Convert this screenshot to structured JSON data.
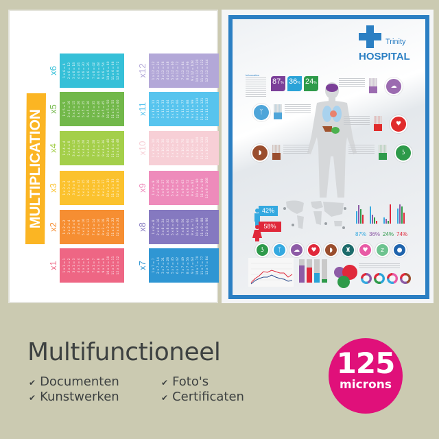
{
  "left_poster": {
    "title": "MULTIPLICATION",
    "tables": [
      {
        "label": "x1",
        "color": "#ee6684",
        "rows": [
          "1 x 1 = 1",
          "2 x 1 = 2",
          "3 x 1 = 3",
          "4 x 1 = 4",
          "5 x 1 = 5",
          "6 x 1 = 6",
          "7 x 1 = 7",
          "8 x 1 = 8",
          "9 x 1 = 9",
          "10 x 1 = 10",
          "11 x 1 = 11",
          "12 x 1 = 12"
        ]
      },
      {
        "label": "x2",
        "color": "#f68e32",
        "rows": [
          "1 x 2 = 2",
          "2 x 2 = 4",
          "3 x 2 = 6",
          "4 x 2 = 8",
          "5 x 2 = 10",
          "6 x 2 = 12",
          "7 x 2 = 14",
          "8 x 2 = 16",
          "9 x 2 = 18",
          "10 x 2 = 20",
          "11 x 2 = 22",
          "12 x 2 = 24"
        ]
      },
      {
        "label": "x3",
        "color": "#fbc22e",
        "rows": [
          "1 x 3 = 3",
          "2 x 3 = 6",
          "3 x 3 = 9",
          "4 x 3 = 12",
          "5 x 3 = 15",
          "6 x 3 = 18",
          "7 x 3 = 21",
          "8 x 3 = 24",
          "9 x 3 = 27",
          "10 x 3 = 30",
          "11 x 3 = 33",
          "12 x 3 = 36"
        ]
      },
      {
        "label": "x4",
        "color": "#a4cf4a",
        "rows": [
          "1 x 4 = 4",
          "2 x 4 = 8",
          "3 x 4 = 12",
          "4 x 4 = 16",
          "5 x 4 = 20",
          "6 x 4 = 24",
          "7 x 4 = 28",
          "8 x 4 = 32",
          "9 x 4 = 36",
          "10 x 4 = 40",
          "11 x 4 = 44",
          "12 x 4 = 48"
        ]
      },
      {
        "label": "x5",
        "color": "#72b84a",
        "rows": [
          "1 x 5 = 5",
          "2 x 5 = 10",
          "3 x 5 = 15",
          "4 x 5 = 20",
          "5 x 5 = 25",
          "6 x 5 = 30",
          "7 x 5 = 35",
          "8 x 5 = 40",
          "9 x 5 = 45",
          "10 x 5 = 50",
          "11 x 5 = 55",
          "12 x 5 = 60"
        ]
      },
      {
        "label": "x6",
        "color": "#36c0d8",
        "rows": [
          "1 x 6 = 6",
          "2 x 6 = 12",
          "3 x 6 = 18",
          "4 x 6 = 24",
          "5 x 6 = 30",
          "6 x 6 = 36",
          "7 x 6 = 42",
          "8 x 6 = 48",
          "9 x 6 = 54",
          "10 x 6 = 60",
          "11 x 6 = 66",
          "12 x 6 = 72"
        ]
      },
      {
        "label": "x7",
        "color": "#2f96d3",
        "rows": [
          "1 x 7 = 7",
          "2 x 7 = 14",
          "3 x 7 = 21",
          "4 x 7 = 28",
          "5 x 7 = 35",
          "6 x 7 = 42",
          "7 x 7 = 49",
          "8 x 7 = 56",
          "9 x 7 = 63",
          "10 x 7 = 70",
          "11 x 7 = 77",
          "12 x 7 = 84"
        ]
      },
      {
        "label": "x8",
        "color": "#8579c0",
        "rows": [
          "1 x 8 = 8",
          "2 x 8 = 16",
          "3 x 8 = 24",
          "4 x 8 = 32",
          "5 x 8 = 40",
          "6 x 8 = 48",
          "7 x 8 = 56",
          "8 x 8 = 64",
          "9 x 8 = 72",
          "10 x 8 = 80",
          "11 x 8 = 88",
          "12 x 8 = 96"
        ]
      },
      {
        "label": "x9",
        "color": "#ee8bbb",
        "rows": [
          "1 x 9 = 9",
          "2 x 9 = 18",
          "3 x 9 = 27",
          "4 x 9 = 36",
          "5 x 9 = 45",
          "6 x 9 = 54",
          "7 x 9 = 63",
          "8 x 9 = 72",
          "9 x 9 = 81",
          "10 x 9 = 90",
          "11 x 9 = 99",
          "12 x 9 = 108"
        ]
      },
      {
        "label": "x10",
        "color": "#f7cfd6",
        "rows": [
          "1 x 10 = 10",
          "2 x 10 = 20",
          "3 x 10 = 30",
          "4 x 10 = 40",
          "5 x 10 = 50",
          "6 x 10 = 60",
          "7 x 10 = 70",
          "8 x 10 = 80",
          "9 x 10 = 90",
          "10 x 10 = 100",
          "11 x 10 = 110",
          "12 x 10 = 120"
        ]
      },
      {
        "label": "x11",
        "color": "#57c4ee",
        "rows": [
          "1 x 11 = 11",
          "2 x 11 = 22",
          "3 x 11 = 33",
          "4 x 11 = 44",
          "5 x 11 = 55",
          "6 x 11 = 66",
          "7 x 11 = 77",
          "8 x 11 = 88",
          "9 x 11 = 99",
          "10 x 11 = 110",
          "11 x 11 = 121",
          "12 x 11 = 132"
        ]
      },
      {
        "label": "x12",
        "color": "#b3a8d8",
        "rows": [
          "1 x 12 = 12",
          "2 x 12 = 24",
          "3 x 12 = 36",
          "4 x 12 = 48",
          "5 x 12 = 60",
          "6 x 12 = 72",
          "7 x 12 = 84",
          "8 x 12 = 96",
          "9 x 12 = 108",
          "10 x 12 = 120",
          "11 x 12 = 132",
          "12 x 12 = 144"
        ]
      }
    ]
  },
  "right_poster": {
    "frame_color": "#2b7fc3",
    "logo": {
      "line1": "Trinity",
      "line2": "HOSPITAL"
    },
    "info_label": "Information",
    "stats": [
      {
        "value": "87",
        "unit": "%",
        "color": "#7b3f98"
      },
      {
        "value": "36",
        "unit": "%",
        "color": "#2aa3d8"
      },
      {
        "value": "24",
        "unit": "%",
        "color": "#2e9a4a"
      }
    ],
    "organs": [
      {
        "name": "brain",
        "color": "#9b6bb0"
      },
      {
        "name": "lungs",
        "color": "#4ea5d9"
      },
      {
        "name": "heart",
        "color": "#e02b2b"
      },
      {
        "name": "liver",
        "color": "#9a4e2e"
      },
      {
        "name": "stomach",
        "color": "#2e9a4a"
      }
    ],
    "gender": [
      {
        "value": "42%",
        "color": "#35a9e0"
      },
      {
        "value": "58%",
        "color": "#e0283a"
      }
    ],
    "bar_labels": [
      {
        "text": "87%",
        "color": "#35a9e0"
      },
      {
        "text": "36%",
        "color": "#8d5ba6"
      },
      {
        "text": "24%",
        "color": "#2e9a4a"
      },
      {
        "text": "74%",
        "color": "#e0283a"
      }
    ],
    "bar_groups": [
      [
        60,
        90,
        70,
        45
      ],
      [
        85,
        45,
        30,
        15
      ],
      [
        30,
        25,
        15,
        95
      ],
      [
        75,
        95,
        85,
        55
      ]
    ],
    "icon_row": [
      {
        "name": "stomach",
        "color": "#2e9a4a"
      },
      {
        "name": "lungs",
        "color": "#35a9e0"
      },
      {
        "name": "brain",
        "color": "#8d5ba6"
      },
      {
        "name": "heart",
        "color": "#e0283a"
      },
      {
        "name": "liver",
        "color": "#9a4e2e"
      },
      {
        "name": "tooth",
        "color": "#1d6b6b"
      },
      {
        "name": "heart-love",
        "color": "#e85aa5"
      },
      {
        "name": "sleep",
        "color": "#6dc38f"
      },
      {
        "name": "apple",
        "color": "#2064ad"
      }
    ],
    "stacked_bars": [
      {
        "fill": 0.75,
        "color": "#8d5ba6"
      },
      {
        "fill": 0.65,
        "color": "#e0283a"
      },
      {
        "fill": 0.4,
        "color": "#2aa3d8"
      },
      {
        "fill": 0.15,
        "color": "#2e9a4a"
      }
    ]
  },
  "caption": {
    "title": "Multifunctioneel",
    "features": [
      "Documenten",
      "Foto's",
      "Kunstwerken",
      "Certificaten"
    ]
  },
  "badge": {
    "value": "125",
    "unit": "microns",
    "color": "#e0107a"
  }
}
